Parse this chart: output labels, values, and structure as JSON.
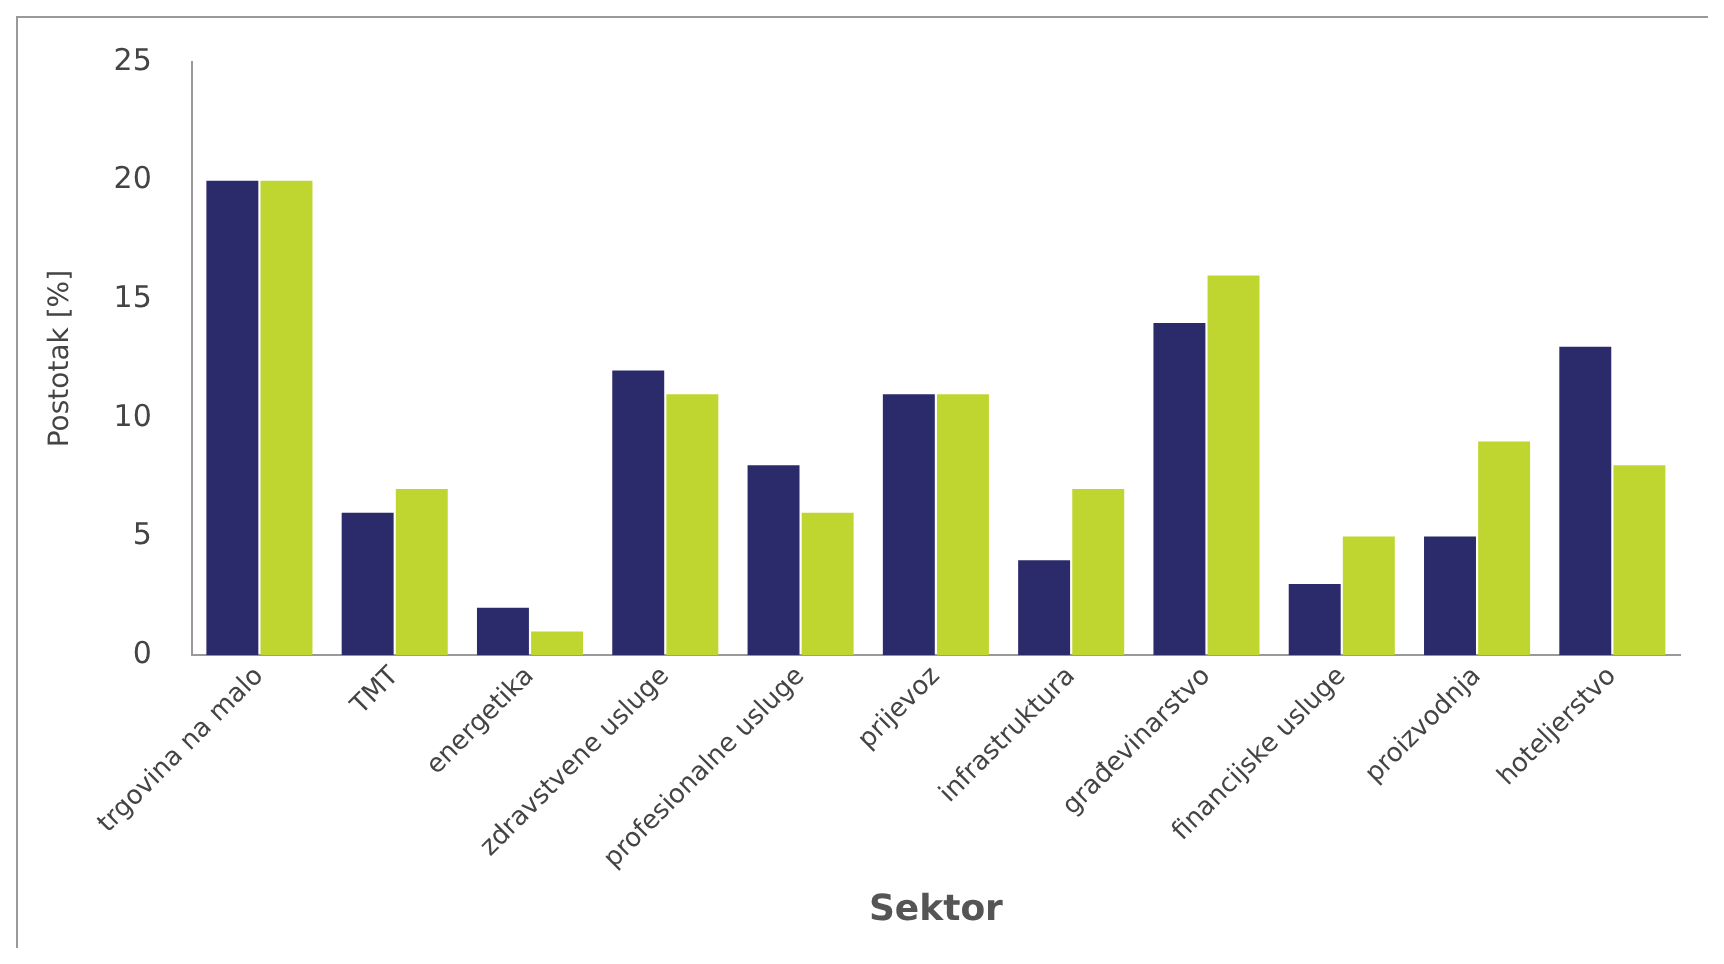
{
  "chart_data": {
    "type": "bar",
    "xlabel": "Sektor",
    "ylabel": "Postotak [%]",
    "categories": [
      "trgovina na malo",
      "TMT",
      "energetika",
      "zdravstvene usluge",
      "profesionalne usluge",
      "prijevoz",
      "infrastruktura",
      "građevinarstvo",
      "financijske usluge",
      "proizvodnja",
      "hoteljerstvo"
    ],
    "series": [
      {
        "color": "#2b2a6b",
        "values": [
          20,
          6,
          2,
          12,
          8,
          11,
          4,
          14,
          3,
          5,
          13
        ]
      },
      {
        "color": "#bfd630",
        "values": [
          20,
          7,
          1,
          11,
          6,
          11,
          7,
          16,
          5,
          9,
          8
        ]
      }
    ],
    "ylim": [
      0,
      25
    ],
    "yticks": [
      0,
      5,
      10,
      15,
      20,
      25
    ],
    "grid": false,
    "legend": false
  }
}
